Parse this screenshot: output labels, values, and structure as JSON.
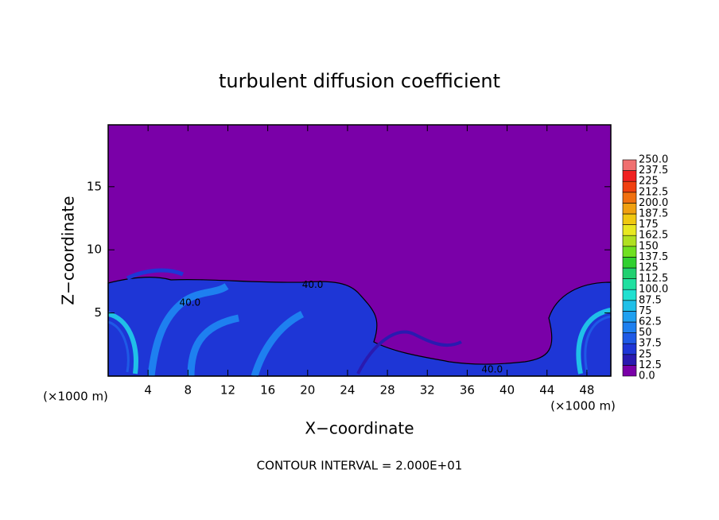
{
  "chart_data": {
    "type": "contour",
    "title": "turbulent diffusion coefficient",
    "x_label": "X−coordinate",
    "y_label": "Z−coordinate",
    "x_unit": "(×1000 m)",
    "y_unit": "(×1000 m)",
    "footnote": "CONTOUR INTERVAL = 2.000E+01",
    "xlim": [
      0,
      50.4
    ],
    "ylim": [
      0,
      19.9
    ],
    "xticks": [
      4,
      8,
      12,
      16,
      20,
      24,
      28,
      32,
      36,
      40,
      44,
      48
    ],
    "yticks": [
      5,
      10,
      15
    ],
    "contour_labels": [
      {
        "x": 20.5,
        "y": 7.2,
        "value": 40,
        "label": "40.0"
      },
      {
        "x": 8.2,
        "y": 5.8,
        "value": 40,
        "label": "40.0"
      },
      {
        "x": 38.5,
        "y": 0.5,
        "value": 40,
        "label": "40.0"
      }
    ],
    "levels": [
      {
        "value": 0,
        "label": "0.0"
      },
      12.5,
      25,
      37.5,
      50,
      62.5,
      75,
      87.5,
      {
        "value": 100,
        "label": "100.0"
      },
      112.5,
      125,
      137.5,
      150,
      162.5,
      175,
      187.5,
      {
        "value": 200,
        "label": "200.0"
      },
      212.5,
      225,
      237.5,
      {
        "value": 250,
        "label": "250.0"
      }
    ],
    "level_colors": [
      "#7a00a8",
      "#2a1ab0",
      "#1e36d6",
      "#1e5ae6",
      "#1e80f0",
      "#20a0f0",
      "#20c0e8",
      "#20e0d0",
      "#20e0a0",
      "#20d070",
      "#30d030",
      "#70e020",
      "#b0e020",
      "#e8e820",
      "#f0c810",
      "#f0a010",
      "#f07010",
      "#f04010",
      "#f02020",
      "#f07070"
    ]
  }
}
